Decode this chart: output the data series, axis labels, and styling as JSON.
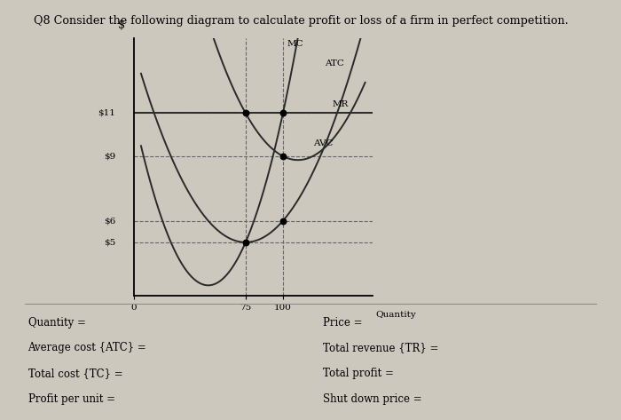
{
  "title": "Q8 Consider the following diagram to calculate profit or loss of a firm in perfect competition.",
  "bg_color": "#cdc8be",
  "plot_bg_color": "#cdc8be",
  "ylabel": "$",
  "xlabel": "Quantity",
  "price_labels": [
    "$11",
    "$9",
    "$6",
    "$5"
  ],
  "price_values": [
    11,
    9,
    6,
    5
  ],
  "xlim": [
    0,
    160
  ],
  "ylim": [
    2.5,
    14.5
  ],
  "mr_value": 11,
  "dashed_color": "#666666",
  "curve_color": "#2a2a2a",
  "line_color": "#1a1a1a",
  "bottom_labels_left": [
    "Quantity =",
    "Average cost {ATC} =",
    "Total cost {TC} = ",
    "Profit per unit ="
  ],
  "bottom_labels_right": [
    "Price =",
    "Total revenue {TR} =",
    "Total profit =",
    "Shut down price ="
  ],
  "curve_label_MC": "MC",
  "curve_label_ATC": "ATC",
  "curve_label_MR": "MR",
  "curve_label_AVC": "AVC"
}
